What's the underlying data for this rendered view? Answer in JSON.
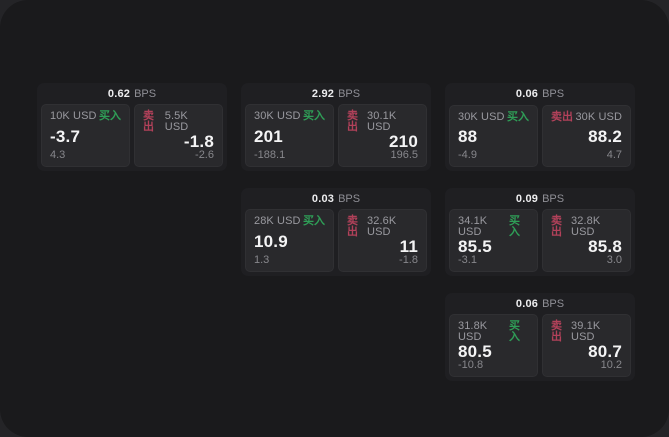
{
  "labels": {
    "bps_suffix": "BPS",
    "buy": "买入",
    "sell": "卖出"
  },
  "colors": {
    "buy": "#2f9e57",
    "sell": "#b2415a",
    "page_background": "#1a1a1c",
    "backdrop": "#242427",
    "card_background": "#1f1f22",
    "panel_background": "#29292c"
  },
  "cards": [
    {
      "bps": "0.62",
      "grid": {
        "col": 1,
        "row": 1
      },
      "buy": {
        "amount": "10K USD",
        "value": "-3.7",
        "sub": "4.3"
      },
      "sell": {
        "amount": "5.5K USD",
        "value": "-1.8",
        "sub": "-2.6"
      }
    },
    {
      "bps": "2.92",
      "grid": {
        "col": 2,
        "row": 1
      },
      "buy": {
        "amount": "30K USD",
        "value": "201",
        "sub": "-188.1"
      },
      "sell": {
        "amount": "30.1K USD",
        "value": "210",
        "sub": "196.5"
      }
    },
    {
      "bps": "0.06",
      "grid": {
        "col": 3,
        "row": 1
      },
      "buy": {
        "amount": "30K USD",
        "value": "88",
        "sub": "-4.9"
      },
      "sell": {
        "amount": "30K USD",
        "value": "88.2",
        "sub": "4.7"
      }
    },
    {
      "bps": "0.03",
      "grid": {
        "col": 2,
        "row": 2
      },
      "buy": {
        "amount": "28K USD",
        "value": "10.9",
        "sub": "1.3"
      },
      "sell": {
        "amount": "32.6K USD",
        "value": "11",
        "sub": "-1.8"
      }
    },
    {
      "bps": "0.09",
      "grid": {
        "col": 3,
        "row": 2
      },
      "buy": {
        "amount": "34.1K USD",
        "value": "85.5",
        "sub": "-3.1"
      },
      "sell": {
        "amount": "32.8K USD",
        "value": "85.8",
        "sub": "3.0"
      }
    },
    {
      "bps": "0.06",
      "grid": {
        "col": 3,
        "row": 3
      },
      "buy": {
        "amount": "31.8K USD",
        "value": "80.5",
        "sub": "-10.8"
      },
      "sell": {
        "amount": "39.1K USD",
        "value": "80.7",
        "sub": "10.2"
      }
    }
  ]
}
